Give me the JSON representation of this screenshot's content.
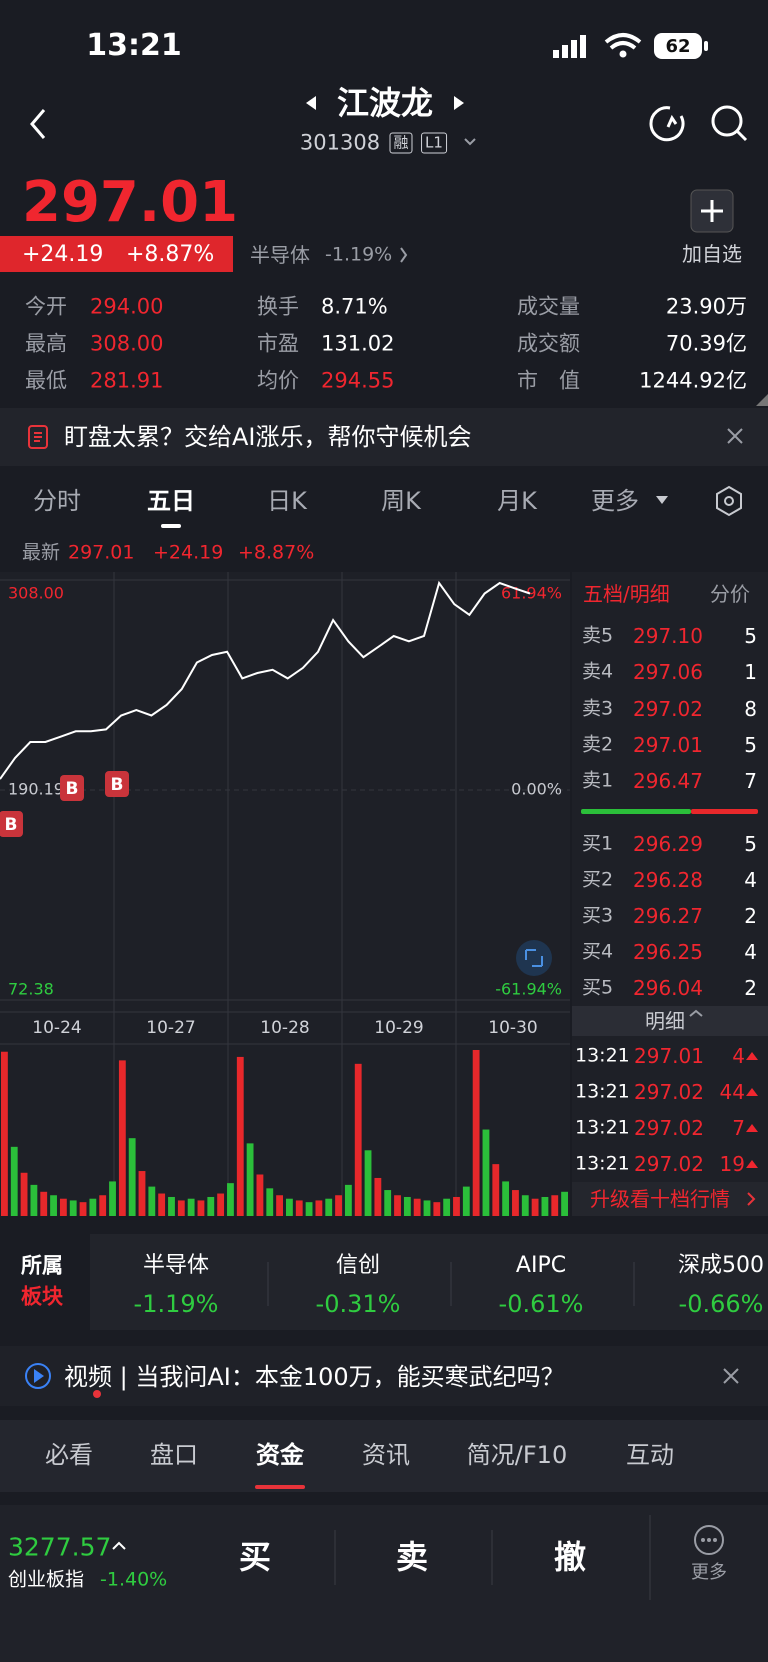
{
  "status_bar": {
    "time": "13:21",
    "battery": "62"
  },
  "header": {
    "title": "江波龙",
    "code": "301308",
    "tag1": "融",
    "tag2": "L1"
  },
  "quote": {
    "price": "297.01",
    "change": "+24.19",
    "change_pct": "+8.87%",
    "sector": "半导体",
    "sector_pct": "-1.19%",
    "add_watch": "加自选"
  },
  "stats": [
    [
      "今开",
      "294.00"
    ],
    [
      "换手",
      "8.71%"
    ],
    [
      "成交量",
      "23.90万"
    ],
    [
      "最高",
      "308.00"
    ],
    [
      "市盈",
      "131.02"
    ],
    [
      "成交额",
      "70.39亿"
    ],
    [
      "最低",
      "281.91"
    ],
    [
      "均价",
      "294.55"
    ],
    [
      "市　值",
      "1244.92亿"
    ]
  ],
  "banner": "盯盘太累？交给AI涨乐，帮你守候机会",
  "chart_tabs": [
    "分时",
    "五日",
    "日K",
    "周K",
    "月K",
    "更多"
  ],
  "latest": {
    "label": "最新",
    "price": "297.01",
    "change": "+24.19",
    "pct": "+8.87%"
  },
  "intraday_chart": {
    "type": "line",
    "color": "#ffffff",
    "ylim": [
      72.38,
      308
    ],
    "yticks": [
      {
        "value": 308,
        "label": "308.00"
      },
      {
        "value": 190.19,
        "label": "190.19"
      },
      72.38
    ],
    "pct_ticks": [
      "61.94%",
      "0.00%",
      "-61.94%"
    ],
    "categories": [
      "10-24",
      "10-27",
      "10-28",
      "10-29",
      "10-30"
    ],
    "values": [
      196.3,
      208.2,
      217.1,
      217.1,
      220.1,
      223.1,
      223.1,
      224.2,
      232,
      235,
      232,
      237.9,
      246.8,
      261.7,
      265.9,
      267.7,
      252.8,
      255.8,
      257.6,
      252.8,
      258.7,
      267.7,
      285.5,
      273.6,
      264.7,
      270.6,
      276.6,
      273.6,
      276.6,
      306.3,
      294.4,
      288.5,
      300.4,
      306.3,
      303.3,
      300.4
    ],
    "markers": [
      "B",
      "B",
      "B"
    ]
  },
  "volume": {
    "colors": [
      "#e8282b",
      "#2bbf3a"
    ],
    "values": [
      95,
      40,
      25,
      18,
      14,
      12,
      10,
      9,
      8,
      10,
      12,
      20,
      90,
      45,
      26,
      17,
      13,
      11,
      9,
      10,
      9,
      11,
      13,
      19,
      92,
      42,
      24,
      16,
      12,
      10,
      9,
      8,
      9,
      10,
      12,
      18,
      88,
      38,
      22,
      15,
      12,
      11,
      10,
      9,
      8,
      10,
      11,
      17,
      96,
      50,
      30,
      20,
      15,
      12,
      10,
      11,
      12,
      14
    ]
  },
  "order_book": {
    "title": "五档/明细",
    "tab": "分价",
    "asks": [
      [
        "卖5",
        "297.10",
        "5"
      ],
      [
        "卖4",
        "297.06",
        "1"
      ],
      [
        "卖3",
        "297.02",
        "8"
      ],
      [
        "卖2",
        "297.01",
        "5"
      ],
      [
        "卖1",
        "296.47",
        "7"
      ]
    ],
    "bids": [
      [
        "买1",
        "296.29",
        "5"
      ],
      [
        "买2",
        "296.28",
        "4"
      ],
      [
        "买3",
        "296.27",
        "2"
      ],
      [
        "买4",
        "296.25",
        "4"
      ],
      [
        "买5",
        "296.04",
        "2"
      ]
    ],
    "detail_label": "明细",
    "trades": [
      [
        "13:21",
        "297.01",
        "4"
      ],
      [
        "13:21",
        "297.02",
        "44"
      ],
      [
        "13:21",
        "297.02",
        "7"
      ],
      [
        "13:21",
        "297.02",
        "19"
      ]
    ],
    "upgrade": "升级看十档行情"
  },
  "sectors": {
    "label1": "所属",
    "label2": "板块",
    "items": [
      [
        "半导体",
        "-1.19%"
      ],
      [
        "信创",
        "-0.31%"
      ],
      [
        "AIPC",
        "-0.61%"
      ],
      [
        "深成500",
        "-0.66%"
      ]
    ]
  },
  "video_banner": "视频 | 当我问AI：本金100万，能买寒武纪吗？",
  "bottom_tabs": [
    "必看",
    "盘口",
    "资金",
    "资讯",
    "简况/F10",
    "互动"
  ],
  "footer": {
    "index_value": "3277.57",
    "index_name": "创业板指",
    "index_pct": "-1.40%",
    "buy": "买",
    "sell": "卖",
    "cancel": "撤",
    "more": "更多"
  }
}
